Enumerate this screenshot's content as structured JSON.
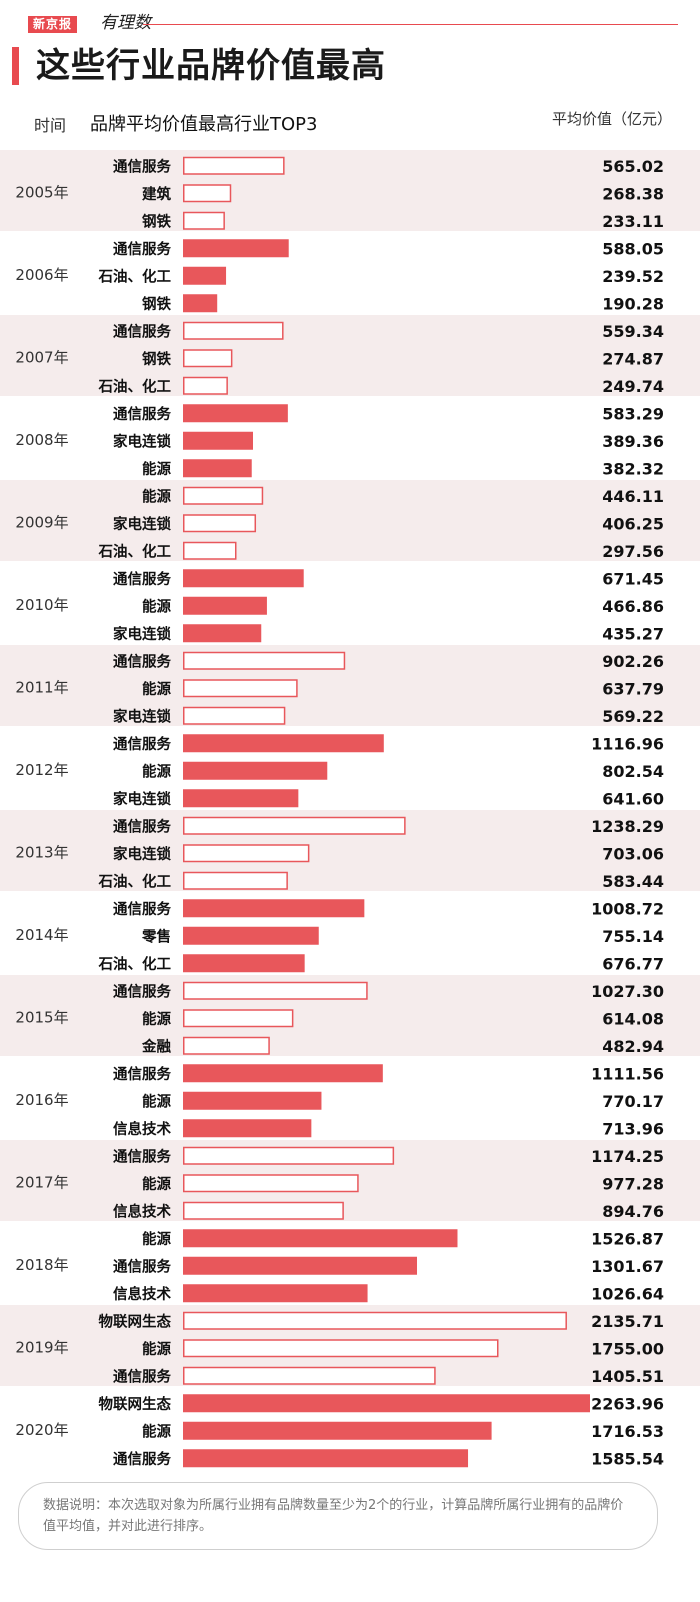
{
  "header": {
    "brand": "新京报",
    "brand_sub": "有理数",
    "title": "这些行业品牌价值最高",
    "time_label": "时间",
    "subtitle": "品牌平均价值最高行业TOP3",
    "unit_label": "平均价值（亿元）"
  },
  "colors": {
    "accent": "#e8575b",
    "band": "#f5ecec",
    "outline": "#e8575b"
  },
  "chart_data": {
    "type": "bar",
    "orientation": "horizontal",
    "title": "品牌平均价值最高行业TOP3",
    "xlabel": "平均价值（亿元）",
    "xlim": [
      0,
      2263.96
    ],
    "groups": [
      {
        "year": "2005年",
        "items": [
          {
            "name": "通信服务",
            "value": "565.02"
          },
          {
            "name": "建筑",
            "value": "268.38"
          },
          {
            "name": "钢铁",
            "value": "233.11"
          }
        ]
      },
      {
        "year": "2006年",
        "items": [
          {
            "name": "通信服务",
            "value": "588.05"
          },
          {
            "name": "石油、化工",
            "value": "239.52"
          },
          {
            "name": "钢铁",
            "value": "190.28"
          }
        ]
      },
      {
        "year": "2007年",
        "items": [
          {
            "name": "通信服务",
            "value": "559.34"
          },
          {
            "name": "钢铁",
            "value": "274.87"
          },
          {
            "name": "石油、化工",
            "value": "249.74"
          }
        ]
      },
      {
        "year": "2008年",
        "items": [
          {
            "name": "通信服务",
            "value": "583.29"
          },
          {
            "name": "家电连锁",
            "value": "389.36"
          },
          {
            "name": "能源",
            "value": "382.32"
          }
        ]
      },
      {
        "year": "2009年",
        "items": [
          {
            "name": "能源",
            "value": "446.11"
          },
          {
            "name": "家电连锁",
            "value": "406.25"
          },
          {
            "name": "石油、化工",
            "value": "297.56"
          }
        ]
      },
      {
        "year": "2010年",
        "items": [
          {
            "name": "通信服务",
            "value": "671.45"
          },
          {
            "name": "能源",
            "value": "466.86"
          },
          {
            "name": "家电连锁",
            "value": "435.27"
          }
        ]
      },
      {
        "year": "2011年",
        "items": [
          {
            "name": "通信服务",
            "value": "902.26"
          },
          {
            "name": "能源",
            "value": "637.79"
          },
          {
            "name": "家电连锁",
            "value": "569.22"
          }
        ]
      },
      {
        "year": "2012年",
        "items": [
          {
            "name": "通信服务",
            "value": "1116.96"
          },
          {
            "name": "能源",
            "value": "802.54"
          },
          {
            "name": "家电连锁",
            "value": "641.60"
          }
        ]
      },
      {
        "year": "2013年",
        "items": [
          {
            "name": "通信服务",
            "value": "1238.29"
          },
          {
            "name": "家电连锁",
            "value": "703.06"
          },
          {
            "name": "石油、化工",
            "value": "583.44"
          }
        ]
      },
      {
        "year": "2014年",
        "items": [
          {
            "name": "通信服务",
            "value": "1008.72"
          },
          {
            "name": "零售",
            "value": "755.14"
          },
          {
            "name": "石油、化工",
            "value": "676.77"
          }
        ]
      },
      {
        "year": "2015年",
        "items": [
          {
            "name": "通信服务",
            "value": "1027.30"
          },
          {
            "name": "能源",
            "value": "614.08"
          },
          {
            "name": "金融",
            "value": "482.94"
          }
        ]
      },
      {
        "year": "2016年",
        "items": [
          {
            "name": "通信服务",
            "value": "1111.56"
          },
          {
            "name": "能源",
            "value": "770.17"
          },
          {
            "name": "信息技术",
            "value": "713.96"
          }
        ]
      },
      {
        "year": "2017年",
        "items": [
          {
            "name": "通信服务",
            "value": "1174.25"
          },
          {
            "name": "能源",
            "value": "977.28"
          },
          {
            "name": "信息技术",
            "value": "894.76"
          }
        ]
      },
      {
        "year": "2018年",
        "items": [
          {
            "name": "能源",
            "value": "1526.87"
          },
          {
            "name": "通信服务",
            "value": "1301.67"
          },
          {
            "name": "信息技术",
            "value": "1026.64"
          }
        ]
      },
      {
        "year": "2019年",
        "items": [
          {
            "name": "物联网生态",
            "value": "2135.71"
          },
          {
            "name": "能源",
            "value": "1755.00"
          },
          {
            "name": "通信服务",
            "value": "1405.51"
          }
        ]
      },
      {
        "year": "2020年",
        "items": [
          {
            "name": "物联网生态",
            "value": "2263.96"
          },
          {
            "name": "能源",
            "value": "1716.53"
          },
          {
            "name": "通信服务",
            "value": "1585.54"
          }
        ]
      }
    ]
  },
  "footer": {
    "note": "数据说明：本次选取对象为所属行业拥有品牌数量至少为2个的行业，计算品牌所属行业拥有的品牌价值平均值，并对此进行排序。"
  }
}
